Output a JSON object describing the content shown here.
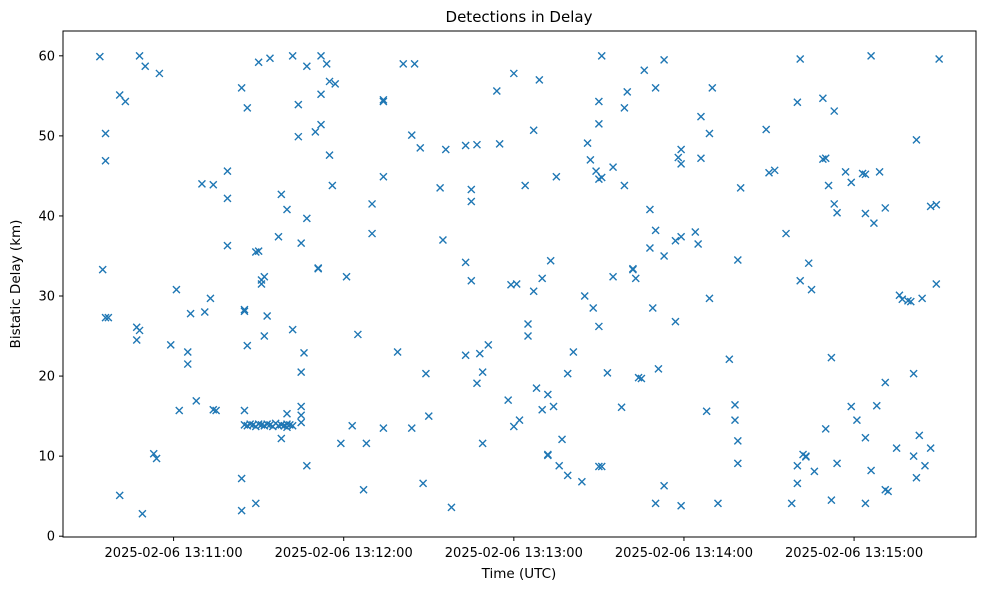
{
  "chart_data": {
    "type": "scatter",
    "title": "Detections in Delay",
    "xlabel": "Time (UTC)",
    "ylabel": "Bistatic Delay (km)",
    "date": "2025-02-06",
    "marker": "x",
    "marker_color": "#1f77b4",
    "axis_color": "#000000",
    "background_color": "#ffffff",
    "grid": false,
    "legend": null,
    "y_ticks": [
      0,
      10,
      20,
      30,
      40,
      50,
      60
    ],
    "x_tick_times": [
      "13:11:00",
      "13:12:00",
      "13:13:00",
      "13:14:00",
      "13:15:00"
    ],
    "x_tick_labels": [
      "2025-02-06 13:11:00",
      "2025-02-06 13:12:00",
      "2025-02-06 13:13:00",
      "2025-02-06 13:14:00",
      "2025-02-06 13:15:00"
    ],
    "x_range": [
      "13:10:21",
      "13:15:43"
    ],
    "y_range": [
      -0.1,
      63.1
    ],
    "points": [
      [
        "13:10:34",
        59.9
      ],
      [
        "13:10:48",
        60.0
      ],
      [
        "13:10:50",
        58.7
      ],
      [
        "13:10:55",
        57.8
      ],
      [
        "13:10:41",
        55.1
      ],
      [
        "13:10:43",
        54.3
      ],
      [
        "13:10:36",
        50.3
      ],
      [
        "13:10:36",
        46.9
      ],
      [
        "13:11:10",
        44.0
      ],
      [
        "13:11:14",
        43.9
      ],
      [
        "13:10:35",
        33.3
      ],
      [
        "13:11:01",
        30.8
      ],
      [
        "13:11:13",
        29.7
      ],
      [
        "13:11:06",
        27.8
      ],
      [
        "13:11:11",
        28.0
      ],
      [
        "13:10:36",
        27.3
      ],
      [
        "13:10:37",
        27.3
      ],
      [
        "13:10:47",
        26.1
      ],
      [
        "13:10:48",
        25.7
      ],
      [
        "13:10:47",
        24.5
      ],
      [
        "13:10:59",
        23.9
      ],
      [
        "13:11:05",
        23.0
      ],
      [
        "13:11:05",
        21.5
      ],
      [
        "13:11:08",
        16.9
      ],
      [
        "13:11:02",
        15.7
      ],
      [
        "13:11:14",
        15.8
      ],
      [
        "13:11:15",
        15.7
      ],
      [
        "13:10:53",
        10.3
      ],
      [
        "13:10:54",
        9.7
      ],
      [
        "13:10:41",
        5.1
      ],
      [
        "13:10:49",
        2.8
      ],
      [
        "13:11:30",
        59.2
      ],
      [
        "13:11:34",
        59.7
      ],
      [
        "13:11:42",
        60.0
      ],
      [
        "13:11:47",
        58.7
      ],
      [
        "13:11:52",
        60.0
      ],
      [
        "13:11:54",
        59.0
      ],
      [
        "13:11:24",
        56.0
      ],
      [
        "13:11:55",
        56.8
      ],
      [
        "13:11:57",
        56.5
      ],
      [
        "13:11:52",
        55.2
      ],
      [
        "13:11:26",
        53.5
      ],
      [
        "13:11:44",
        53.9
      ],
      [
        "13:11:52",
        51.4
      ],
      [
        "13:11:50",
        50.5
      ],
      [
        "13:11:44",
        49.9
      ],
      [
        "13:11:55",
        47.6
      ],
      [
        "13:11:19",
        45.6
      ],
      [
        "13:11:56",
        43.8
      ],
      [
        "13:11:19",
        42.2
      ],
      [
        "13:11:38",
        42.7
      ],
      [
        "13:11:40",
        40.8
      ],
      [
        "13:11:47",
        39.7
      ],
      [
        "13:11:37",
        37.4
      ],
      [
        "13:11:45",
        36.6
      ],
      [
        "13:11:19",
        36.3
      ],
      [
        "13:11:29",
        35.5
      ],
      [
        "13:11:30",
        35.6
      ],
      [
        "13:11:51",
        33.5
      ],
      [
        "13:11:51",
        33.4
      ],
      [
        "13:11:32",
        32.4
      ],
      [
        "13:11:31",
        32.0
      ],
      [
        "13:12:01",
        32.4
      ],
      [
        "13:12:10",
        41.5
      ],
      [
        "13:12:10",
        37.8
      ],
      [
        "13:11:31",
        31.5
      ],
      [
        "13:11:25",
        28.3
      ],
      [
        "13:11:25",
        28.1
      ],
      [
        "13:11:33",
        27.5
      ],
      [
        "13:11:42",
        25.8
      ],
      [
        "13:11:32",
        25.0
      ],
      [
        "13:11:26",
        23.8
      ],
      [
        "13:12:05",
        25.2
      ],
      [
        "13:11:46",
        22.9
      ],
      [
        "13:11:45",
        20.5
      ],
      [
        "13:11:25",
        15.7
      ],
      [
        "13:11:40",
        15.3
      ],
      [
        "13:11:45",
        16.2
      ],
      [
        "13:11:45",
        15.1
      ],
      [
        "13:11:45",
        14.2
      ],
      [
        "13:11:40",
        13.6
      ],
      [
        "13:11:38",
        12.2
      ],
      [
        "13:11:59",
        11.6
      ],
      [
        "13:12:08",
        11.6
      ],
      [
        "13:12:03",
        13.8
      ],
      [
        "13:11:47",
        8.8
      ],
      [
        "13:11:24",
        7.2
      ],
      [
        "13:12:07",
        5.8
      ],
      [
        "13:11:29",
        4.1
      ],
      [
        "13:11:24",
        3.2
      ],
      [
        "13:11:25",
        13.9
      ],
      [
        "13:11:26",
        13.8
      ],
      [
        "13:11:27",
        14.0
      ],
      [
        "13:11:28",
        13.9
      ],
      [
        "13:11:29",
        13.7
      ],
      [
        "13:11:30",
        14.0
      ],
      [
        "13:11:31",
        13.9
      ],
      [
        "13:11:32",
        13.8
      ],
      [
        "13:11:33",
        14.0
      ],
      [
        "13:11:34",
        13.9
      ],
      [
        "13:11:35",
        13.7
      ],
      [
        "13:11:36",
        14.1
      ],
      [
        "13:11:37",
        13.8
      ],
      [
        "13:11:38",
        13.9
      ],
      [
        "13:11:39",
        13.8
      ],
      [
        "13:11:40",
        14.0
      ],
      [
        "13:11:41",
        13.9
      ],
      [
        "13:11:42",
        13.8
      ],
      [
        "13:12:21",
        59.0
      ],
      [
        "13:12:25",
        59.0
      ],
      [
        "13:13:00",
        57.8
      ],
      [
        "13:12:54",
        55.6
      ],
      [
        "13:12:14",
        54.5
      ],
      [
        "13:12:14",
        54.3
      ],
      [
        "13:12:24",
        50.1
      ],
      [
        "13:12:27",
        48.5
      ],
      [
        "13:12:36",
        48.3
      ],
      [
        "13:12:43",
        48.8
      ],
      [
        "13:12:47",
        48.9
      ],
      [
        "13:12:55",
        49.0
      ],
      [
        "13:12:14",
        44.9
      ],
      [
        "13:12:34",
        43.5
      ],
      [
        "13:12:45",
        43.3
      ],
      [
        "13:12:45",
        41.8
      ],
      [
        "13:13:04",
        43.8
      ],
      [
        "13:12:35",
        37.0
      ],
      [
        "13:12:43",
        34.2
      ],
      [
        "13:12:45",
        31.9
      ],
      [
        "13:12:59",
        31.4
      ],
      [
        "13:13:01",
        31.5
      ],
      [
        "13:12:19",
        23.0
      ],
      [
        "13:12:43",
        22.6
      ],
      [
        "13:12:48",
        22.8
      ],
      [
        "13:12:51",
        23.9
      ],
      [
        "13:12:29",
        20.3
      ],
      [
        "13:12:49",
        20.5
      ],
      [
        "13:12:47",
        19.1
      ],
      [
        "13:12:58",
        17.0
      ],
      [
        "13:12:30",
        15.0
      ],
      [
        "13:12:14",
        13.5
      ],
      [
        "13:12:24",
        13.5
      ],
      [
        "13:13:00",
        13.7
      ],
      [
        "13:13:02",
        14.5
      ],
      [
        "13:12:49",
        11.6
      ],
      [
        "13:12:28",
        6.6
      ],
      [
        "13:12:38",
        3.6
      ],
      [
        "13:13:05",
        26.5
      ],
      [
        "13:13:05",
        25.0
      ],
      [
        "13:13:31",
        60.0
      ],
      [
        "13:13:46",
        58.2
      ],
      [
        "13:13:53",
        59.5
      ],
      [
        "13:13:09",
        57.0
      ],
      [
        "13:13:40",
        55.5
      ],
      [
        "13:13:50",
        56.0
      ],
      [
        "13:13:30",
        54.3
      ],
      [
        "13:13:39",
        53.5
      ],
      [
        "13:13:30",
        51.5
      ],
      [
        "13:13:07",
        50.7
      ],
      [
        "13:13:26",
        49.1
      ],
      [
        "13:13:27",
        47.0
      ],
      [
        "13:13:29",
        45.6
      ],
      [
        "13:13:31",
        44.8
      ],
      [
        "13:13:30",
        44.6
      ],
      [
        "13:13:35",
        46.1
      ],
      [
        "13:13:15",
        44.9
      ],
      [
        "13:13:39",
        43.8
      ],
      [
        "13:13:48",
        40.8
      ],
      [
        "13:13:50",
        38.2
      ],
      [
        "13:13:48",
        36.0
      ],
      [
        "13:13:57",
        36.9
      ],
      [
        "13:13:59",
        37.4
      ],
      [
        "13:13:53",
        35.0
      ],
      [
        "13:13:13",
        34.4
      ],
      [
        "13:13:10",
        32.2
      ],
      [
        "13:13:35",
        32.4
      ],
      [
        "13:13:42",
        33.3
      ],
      [
        "13:13:42",
        33.4
      ],
      [
        "13:13:43",
        32.2
      ],
      [
        "13:13:59",
        48.3
      ],
      [
        "13:13:58",
        47.3
      ],
      [
        "13:13:59",
        46.5
      ],
      [
        "13:13:07",
        30.6
      ],
      [
        "13:13:25",
        30.0
      ],
      [
        "13:13:28",
        28.5
      ],
      [
        "13:13:49",
        28.5
      ],
      [
        "13:13:30",
        26.2
      ],
      [
        "13:13:57",
        26.8
      ],
      [
        "13:13:21",
        23.0
      ],
      [
        "13:13:19",
        20.3
      ],
      [
        "13:13:33",
        20.4
      ],
      [
        "13:13:44",
        19.8
      ],
      [
        "13:13:45",
        19.7
      ],
      [
        "13:13:51",
        20.9
      ],
      [
        "13:13:08",
        18.5
      ],
      [
        "13:13:12",
        17.7
      ],
      [
        "13:13:14",
        16.2
      ],
      [
        "13:13:10",
        15.8
      ],
      [
        "13:13:38",
        16.1
      ],
      [
        "13:13:17",
        12.1
      ],
      [
        "13:13:12",
        10.1
      ],
      [
        "13:13:12",
        10.2
      ],
      [
        "13:13:16",
        8.8
      ],
      [
        "13:13:19",
        7.6
      ],
      [
        "13:13:24",
        6.8
      ],
      [
        "13:13:30",
        8.7
      ],
      [
        "13:13:31",
        8.7
      ],
      [
        "13:13:53",
        6.3
      ],
      [
        "13:13:50",
        4.1
      ],
      [
        "13:13:59",
        3.8
      ],
      [
        "13:14:41",
        59.6
      ],
      [
        "13:14:10",
        56.0
      ],
      [
        "13:14:40",
        54.2
      ],
      [
        "13:14:49",
        54.7
      ],
      [
        "13:14:53",
        53.1
      ],
      [
        "13:14:06",
        52.4
      ],
      [
        "13:14:29",
        50.8
      ],
      [
        "13:14:09",
        50.3
      ],
      [
        "13:14:06",
        47.2
      ],
      [
        "13:14:49",
        47.1
      ],
      [
        "13:14:50",
        47.2
      ],
      [
        "13:14:30",
        45.4
      ],
      [
        "13:14:32",
        45.7
      ],
      [
        "13:14:20",
        43.5
      ],
      [
        "13:14:51",
        43.8
      ],
      [
        "13:14:04",
        38.0
      ],
      [
        "13:14:05",
        36.5
      ],
      [
        "13:14:36",
        37.8
      ],
      [
        "13:14:19",
        34.5
      ],
      [
        "13:14:44",
        34.1
      ],
      [
        "13:14:53",
        41.5
      ],
      [
        "13:14:54",
        40.4
      ],
      [
        "13:14:41",
        31.9
      ],
      [
        "13:14:45",
        30.8
      ],
      [
        "13:14:09",
        29.7
      ],
      [
        "13:14:16",
        22.1
      ],
      [
        "13:14:52",
        22.3
      ],
      [
        "13:14:18",
        16.4
      ],
      [
        "13:14:08",
        15.6
      ],
      [
        "13:14:18",
        14.5
      ],
      [
        "13:14:19",
        11.9
      ],
      [
        "13:14:19",
        9.1
      ],
      [
        "13:14:50",
        13.4
      ],
      [
        "13:14:42",
        10.2
      ],
      [
        "13:14:43",
        10.0
      ],
      [
        "13:14:43",
        9.9
      ],
      [
        "13:14:40",
        8.8
      ],
      [
        "13:14:46",
        8.1
      ],
      [
        "13:14:54",
        9.1
      ],
      [
        "13:14:40",
        6.6
      ],
      [
        "13:14:12",
        4.1
      ],
      [
        "13:14:38",
        4.1
      ],
      [
        "13:14:52",
        4.5
      ],
      [
        "13:15:06",
        60.0
      ],
      [
        "13:15:30",
        59.6
      ],
      [
        "13:15:22",
        49.5
      ],
      [
        "13:14:57",
        45.5
      ],
      [
        "13:15:03",
        45.3
      ],
      [
        "13:15:04",
        45.2
      ],
      [
        "13:15:09",
        45.5
      ],
      [
        "13:14:59",
        44.2
      ],
      [
        "13:15:11",
        41.0
      ],
      [
        "13:15:04",
        40.3
      ],
      [
        "13:15:07",
        39.1
      ],
      [
        "13:15:27",
        41.2
      ],
      [
        "13:15:29",
        41.4
      ],
      [
        "13:15:29",
        31.5
      ],
      [
        "13:15:16",
        30.1
      ],
      [
        "13:15:17",
        29.6
      ],
      [
        "13:15:19",
        29.4
      ],
      [
        "13:15:20",
        29.3
      ],
      [
        "13:15:24",
        29.7
      ],
      [
        "13:15:21",
        20.3
      ],
      [
        "13:15:11",
        19.2
      ],
      [
        "13:14:59",
        16.2
      ],
      [
        "13:15:08",
        16.3
      ],
      [
        "13:15:01",
        14.5
      ],
      [
        "13:15:04",
        12.3
      ],
      [
        "13:15:15",
        11.0
      ],
      [
        "13:15:21",
        10.0
      ],
      [
        "13:15:23",
        12.6
      ],
      [
        "13:15:27",
        11.0
      ],
      [
        "13:15:25",
        8.8
      ],
      [
        "13:15:22",
        7.3
      ],
      [
        "13:15:06",
        8.2
      ],
      [
        "13:15:11",
        5.8
      ],
      [
        "13:15:12",
        5.6
      ],
      [
        "13:15:04",
        4.1
      ]
    ]
  }
}
